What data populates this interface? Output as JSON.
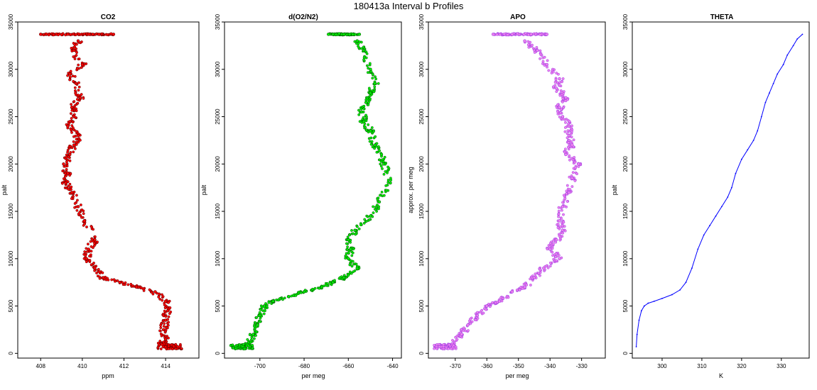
{
  "figure": {
    "title": "180413a   Interval b Profiles"
  },
  "chart_data": [
    {
      "type": "scatter",
      "title": "CO2",
      "xlabel": "ppm",
      "ylabel": "palt",
      "xlim": [
        406.9,
        415.6
      ],
      "ylim": [
        -500,
        35000
      ],
      "xticks": [
        408,
        410,
        412,
        414
      ],
      "yticks": [
        0,
        5000,
        10000,
        15000,
        20000,
        25000,
        30000,
        35000
      ],
      "marker_fill": "#ff0000",
      "marker_edge": "#3a0000",
      "series": [
        {
          "x": [
            408.0,
            409.3,
            410.5,
            410.8,
            411.5
          ],
          "y": [
            33700,
            33700,
            33700,
            33700,
            33700
          ]
        },
        {
          "x": [
            409.8,
            409.6,
            410.0,
            409.4,
            409.7,
            409.9,
            409.5,
            409.6,
            409.3,
            409.8,
            409.6,
            409.4,
            409.1,
            409.3,
            409.2,
            409.5,
            409.8,
            410.1,
            410.6,
            410.3,
            410.2,
            410.6,
            411.0,
            411.8,
            412.6,
            413.5,
            414.0,
            414.1,
            414.0,
            413.9,
            414.0,
            413.8,
            414.2
          ],
          "y": [
            33000,
            32000,
            30500,
            29500,
            28500,
            27000,
            26000,
            25000,
            24000,
            23000,
            22000,
            21000,
            20000,
            19000,
            18000,
            17000,
            15500,
            14000,
            12000,
            11000,
            10000,
            9000,
            8000,
            7500,
            7000,
            6500,
            5500,
            4500,
            3500,
            2500,
            1500,
            1000,
            700
          ]
        }
      ]
    },
    {
      "type": "scatter",
      "title": "d(O2/N2)",
      "xlabel": "per meg",
      "ylabel": "palt",
      "xlim": [
        -716,
        -636
      ],
      "ylim": [
        -500,
        35000
      ],
      "xticks": [
        -700,
        -680,
        -660,
        -640
      ],
      "yticks": [
        0,
        5000,
        10000,
        15000,
        20000,
        25000,
        30000,
        35000
      ],
      "marker_fill": "#00ee00",
      "marker_edge": "#003a00",
      "series": [
        {
          "x": [
            -669,
            -662,
            -658,
            -655
          ],
          "y": [
            33700,
            33700,
            33700,
            33700
          ]
        },
        {
          "x": [
            -656,
            -653,
            -650,
            -648,
            -650,
            -652,
            -654,
            -653,
            -650,
            -648,
            -645,
            -644,
            -641,
            -646,
            -650,
            -657,
            -660,
            -659,
            -660,
            -656,
            -662,
            -667,
            -672,
            -680,
            -687,
            -694,
            -698,
            -700,
            -701,
            -703,
            -706,
            -708
          ],
          "y": [
            33000,
            32000,
            30000,
            28500,
            27500,
            26500,
            25500,
            24500,
            23500,
            22000,
            21000,
            20000,
            18000,
            16000,
            14500,
            13000,
            12000,
            11000,
            10000,
            9000,
            8000,
            7500,
            7000,
            6500,
            6000,
            5500,
            5000,
            4000,
            3000,
            2000,
            1000,
            700
          ]
        }
      ]
    },
    {
      "type": "scatter",
      "title": "APO",
      "xlabel": "per meg",
      "ylabel": "approx. per meg",
      "xlim": [
        -378.5,
        -322.5
      ],
      "ylim": [
        -500,
        35000
      ],
      "xticks": [
        -370,
        -360,
        -350,
        -340,
        -330
      ],
      "yticks": [
        0,
        5000,
        10000,
        15000,
        20000,
        25000,
        30000,
        35000
      ],
      "marker_fill": "#ee82ee",
      "marker_edge": "#8a2be2",
      "series": [
        {
          "x": [
            -358,
            -352,
            -346,
            -341
          ],
          "y": [
            33700,
            33700,
            33700,
            33700
          ]
        },
        {
          "x": [
            -348,
            -344,
            -341,
            -337,
            -338,
            -335,
            -337,
            -336,
            -334,
            -334,
            -333,
            -335,
            -331,
            -333,
            -334,
            -336,
            -337,
            -336,
            -338,
            -340,
            -337,
            -342,
            -345,
            -348,
            -352,
            -356,
            -360,
            -363,
            -366,
            -368,
            -371,
            -373
          ],
          "y": [
            33000,
            32000,
            30500,
            29000,
            28000,
            27000,
            26000,
            25000,
            24000,
            23000,
            22000,
            21000,
            20000,
            18500,
            17000,
            15500,
            14000,
            13000,
            12000,
            11000,
            10000,
            9000,
            8000,
            7000,
            6500,
            5500,
            5000,
            4000,
            3000,
            2000,
            1000,
            700
          ]
        }
      ]
    },
    {
      "type": "line",
      "title": "THETA",
      "xlabel": "K",
      "ylabel": "palt",
      "xlim": [
        292.5,
        337.0
      ],
      "ylim": [
        -500,
        35000
      ],
      "xticks": [
        300,
        310,
        320,
        330
      ],
      "yticks": [
        0,
        5000,
        10000,
        15000,
        20000,
        25000,
        30000,
        35000
      ],
      "line_color": "#0000ff",
      "x": [
        293.5,
        293.7,
        294.2,
        294.8,
        295.5,
        296.5,
        298.0,
        300.0,
        302.5,
        304.5,
        306.0,
        307.5,
        309.0,
        310.5,
        312.0,
        313.5,
        315.0,
        316.5,
        317.5,
        318.5,
        320.0,
        321.5,
        323.0,
        324.0,
        325.0,
        326.0,
        327.0,
        328.0,
        329.0,
        330.5,
        331.5,
        333.0,
        334.0,
        335.3
      ],
      "y": [
        700,
        2000,
        3500,
        4500,
        5000,
        5300,
        5500,
        5800,
        6200,
        6700,
        7500,
        9000,
        11000,
        12500,
        13500,
        14500,
        15500,
        16500,
        17500,
        19000,
        20500,
        21500,
        22500,
        23500,
        25000,
        26500,
        27500,
        28500,
        29500,
        30500,
        31500,
        32500,
        33200,
        33700
      ]
    }
  ]
}
